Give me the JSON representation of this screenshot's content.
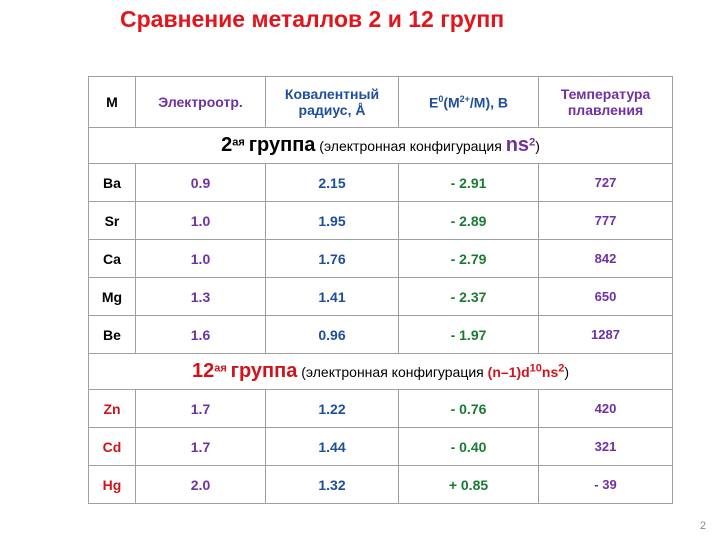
{
  "title": "Сравнение металлов 2 и 12 групп",
  "table": {
    "header": {
      "m": "M",
      "electroneg": "Электроотр.",
      "radius": "Ковалентный радиус, Å",
      "potential": {
        "symbol": "E",
        "sup1": "0",
        "mid": "(M",
        "sup2": "2+",
        "end": "/M), В"
      },
      "melting": "Температура плавления"
    },
    "groups": [
      {
        "number": "2",
        "suffix": "ая",
        "label": "группа",
        "note": "(электронная конфигурация",
        "config": "ns",
        "config_sup": "2",
        "close": ")",
        "rows": [
          [
            "Ba",
            "0.9",
            "2.15",
            "- 2.91",
            "727"
          ],
          [
            "Sr",
            "1.0",
            "1.95",
            "- 2.89",
            "777"
          ],
          [
            "Ca",
            "1.0",
            "1.76",
            "- 2.79",
            "842"
          ],
          [
            "Mg",
            "1.3",
            "1.41",
            "- 2.37",
            "650"
          ],
          [
            "Be",
            "1.6",
            "0.96",
            "- 1.97",
            "1287"
          ]
        ]
      },
      {
        "number": "12",
        "suffix": "ая",
        "label": "группа",
        "note": "(электронная конфигурация",
        "config": "(n–1)d",
        "config_sup": "10",
        "config2": "ns",
        "config2_sup": "2",
        "close": ")",
        "rows": [
          [
            "Zn",
            "1.7",
            "1.22",
            "- 0.76",
            "420"
          ],
          [
            "Cd",
            "1.7",
            "1.44",
            "- 0.40",
            "321"
          ],
          [
            "Hg",
            "2.0",
            "1.32",
            "+ 0.85",
            "- 39"
          ]
        ]
      }
    ]
  },
  "page_number": "2"
}
